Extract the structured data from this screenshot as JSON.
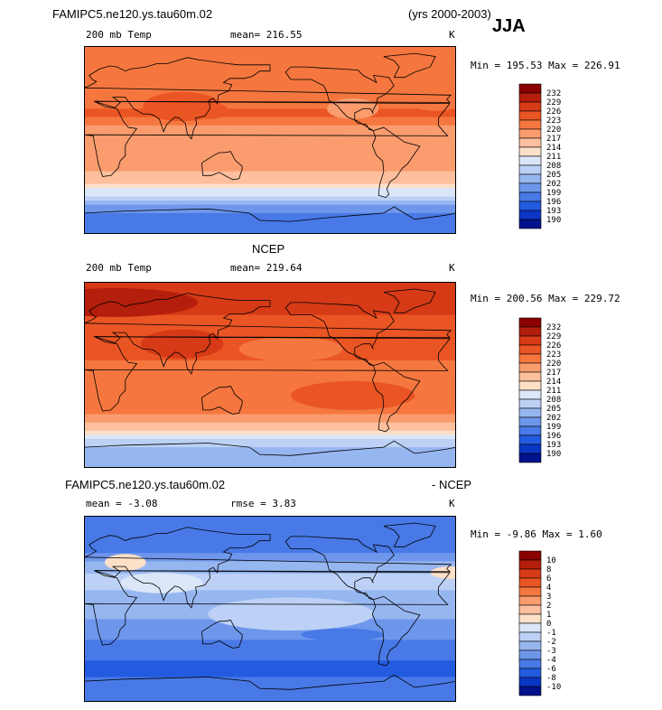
{
  "header": {
    "case_title": "FAMIPC5.ne120.ys.tau60m.02",
    "years": "(yrs 2000-2003)",
    "season": "JJA"
  },
  "panels": [
    {
      "id": "model",
      "title": "",
      "field": "200 mb Temp",
      "stat1": "mean=  216.55",
      "stat2": "",
      "units": "K",
      "range": "Min = 195.53 Max = 226.91",
      "levels": [
        "232",
        "229",
        "226",
        "223",
        "220",
        "217",
        "214",
        "211",
        "208",
        "205",
        "202",
        "199",
        "196",
        "193",
        "190"
      ]
    },
    {
      "id": "ncep",
      "title": "NCEP",
      "field": "200 mb Temp",
      "stat1": "mean=  219.64",
      "stat2": "",
      "units": "K",
      "range": "Min = 200.56 Max = 229.72",
      "levels": [
        "232",
        "229",
        "226",
        "223",
        "220",
        "217",
        "214",
        "211",
        "208",
        "205",
        "202",
        "199",
        "196",
        "193",
        "190"
      ]
    },
    {
      "id": "diff",
      "title": "FAMIPC5.ne120.ys.tau60m.02",
      "title_right": "- NCEP",
      "field": "mean =  -3.08",
      "stat1": "rmse =   3.83",
      "units": "K",
      "range": "Min =  -9.86 Max =   1.60",
      "levels": [
        "10",
        "8",
        "6",
        "4",
        "3",
        "2",
        "1",
        "0",
        "-1",
        "-2",
        "-3",
        "-4",
        "-6",
        "-8",
        "-10"
      ]
    }
  ],
  "colors": {
    "colorbar": [
      "#8b0000",
      "#b41e0c",
      "#d63a16",
      "#ea5524",
      "#f5773f",
      "#fa9c6e",
      "#fdbf9d",
      "#fde0c8",
      "#dbe6f8",
      "#bcd1f5",
      "#96b6f0",
      "#6e97ec",
      "#4879e6",
      "#235be0",
      "#0a36c4",
      "#00118c"
    ],
    "coast": "#000000"
  },
  "chart_data": [
    {
      "type": "heatmap",
      "name": "model 200 mb Temp",
      "title": "200 mb Temp",
      "units": "K",
      "mean": 216.55,
      "min": 195.53,
      "max": 226.91,
      "x": "longitude 0-360",
      "y": "latitude -90 to 90",
      "contour_levels": [
        190,
        193,
        196,
        199,
        202,
        205,
        208,
        211,
        214,
        217,
        220,
        223,
        226,
        229,
        232
      ],
      "zonal_profile": [
        {
          "lat": 80,
          "value": 222
        },
        {
          "lat": 60,
          "value": 220
        },
        {
          "lat": 40,
          "value": 221
        },
        {
          "lat": 25,
          "value": 224
        },
        {
          "lat": 10,
          "value": 219
        },
        {
          "lat": -10,
          "value": 218
        },
        {
          "lat": -30,
          "value": 217
        },
        {
          "lat": -45,
          "value": 213
        },
        {
          "lat": -55,
          "value": 206
        },
        {
          "lat": -65,
          "value": 200
        },
        {
          "lat": -80,
          "value": 196
        }
      ]
    },
    {
      "type": "heatmap",
      "name": "NCEP 200 mb Temp",
      "title": "200 mb Temp",
      "units": "K",
      "mean": 219.64,
      "min": 200.56,
      "max": 229.72,
      "contour_levels": [
        190,
        193,
        196,
        199,
        202,
        205,
        208,
        211,
        214,
        217,
        220,
        223,
        226,
        229,
        232
      ],
      "zonal_profile": [
        {
          "lat": 80,
          "value": 228
        },
        {
          "lat": 60,
          "value": 226
        },
        {
          "lat": 40,
          "value": 224
        },
        {
          "lat": 25,
          "value": 226
        },
        {
          "lat": 10,
          "value": 221
        },
        {
          "lat": -10,
          "value": 221
        },
        {
          "lat": -30,
          "value": 222
        },
        {
          "lat": -45,
          "value": 218
        },
        {
          "lat": -55,
          "value": 214
        },
        {
          "lat": -65,
          "value": 206
        },
        {
          "lat": -80,
          "value": 202
        }
      ]
    },
    {
      "type": "heatmap",
      "name": "model - NCEP difference",
      "units": "K",
      "mean": -3.08,
      "rmse": 3.83,
      "min": -9.86,
      "max": 1.6,
      "contour_levels": [
        -10,
        -8,
        -6,
        -4,
        -3,
        -2,
        -1,
        0,
        1,
        2,
        3,
        4,
        6,
        8,
        10
      ],
      "zonal_profile": [
        {
          "lat": 80,
          "value": -6
        },
        {
          "lat": 60,
          "value": -5
        },
        {
          "lat": 40,
          "value": -2.5
        },
        {
          "lat": 25,
          "value": -1
        },
        {
          "lat": 10,
          "value": -3
        },
        {
          "lat": -10,
          "value": -3
        },
        {
          "lat": -30,
          "value": -4
        },
        {
          "lat": -45,
          "value": -5
        },
        {
          "lat": -55,
          "value": -7
        },
        {
          "lat": -65,
          "value": -6
        },
        {
          "lat": -80,
          "value": -5
        }
      ]
    }
  ]
}
